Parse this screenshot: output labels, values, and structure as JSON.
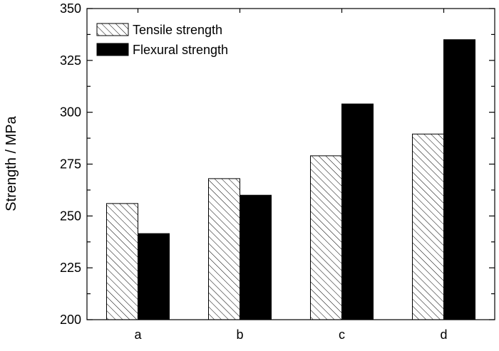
{
  "chart_data": {
    "type": "bar",
    "title": "",
    "xlabel": "",
    "ylabel": "Strength / MPa",
    "ylim": [
      200,
      350
    ],
    "yticks": [
      200,
      225,
      250,
      275,
      300,
      325,
      350
    ],
    "categories": [
      "a",
      "b",
      "c",
      "d"
    ],
    "series": [
      {
        "name": "Tensile strength",
        "values": [
          256,
          268,
          279,
          289.5
        ],
        "fill": "hatched",
        "color": "#000000"
      },
      {
        "name": "Flexural strength",
        "values": [
          241.5,
          260,
          304,
          335
        ],
        "fill": "solid",
        "color": "#000000"
      }
    ],
    "legend_position": "top-left",
    "grid": false
  }
}
